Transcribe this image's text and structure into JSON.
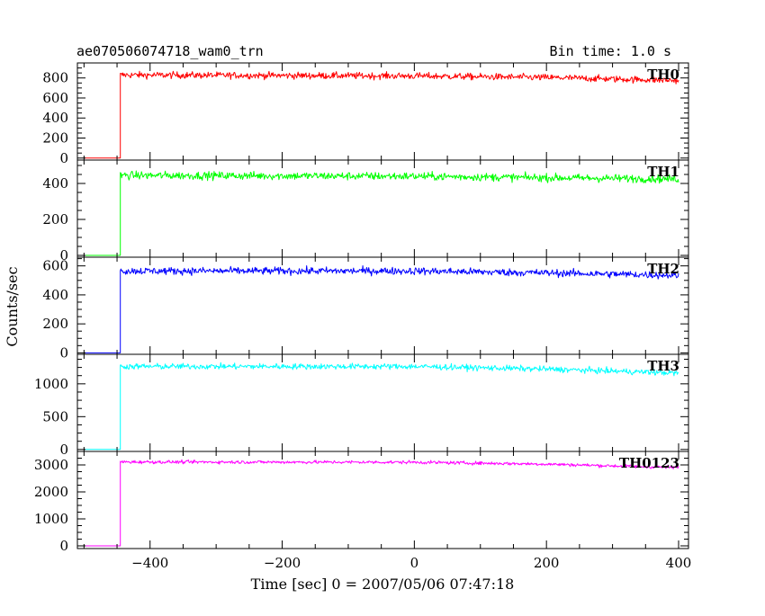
{
  "header": {
    "title": "ae070506074718_wam0_trn",
    "bin_time": "Bin time: 1.0 s"
  },
  "chart_data": {
    "type": "line",
    "xlabel": "Time [sec] 0 = 2007/05/06 07:47:18",
    "ylabel": "Counts/sec",
    "xlim": [
      -510,
      415
    ],
    "x_ticks": [
      -400,
      -200,
      0,
      200,
      400
    ],
    "x_tick_labels": [
      "−400",
      "−200",
      "0",
      "200",
      "400"
    ],
    "grid": false,
    "panels": [
      {
        "series_name": "TH0",
        "color": "#ff0000",
        "ylim": [
          -20,
          950
        ],
        "y_ticks": [
          0,
          200,
          400,
          600,
          800
        ],
        "y_tick_labels": [
          "0",
          "200",
          "400",
          "600",
          "800"
        ],
        "pre_level": 0,
        "onset_time": -445,
        "trend": [
          [
            -445,
            830
          ],
          [
            0,
            820
          ],
          [
            200,
            805
          ],
          [
            400,
            775
          ]
        ],
        "noise_amplitude": 30
      },
      {
        "series_name": "TH1",
        "color": "#00ff00",
        "ylim": [
          -10,
          530
        ],
        "y_ticks": [
          0,
          200,
          400
        ],
        "y_tick_labels": [
          "0",
          "200",
          "400"
        ],
        "pre_level": 0,
        "onset_time": -445,
        "trend": [
          [
            -445,
            445
          ],
          [
            0,
            440
          ],
          [
            200,
            432
          ],
          [
            400,
            425
          ]
        ],
        "noise_amplitude": 20
      },
      {
        "series_name": "TH2",
        "color": "#0000ff",
        "ylim": [
          -10,
          660
        ],
        "y_ticks": [
          0,
          200,
          400,
          600
        ],
        "y_tick_labels": [
          "0",
          "200",
          "400",
          "600"
        ],
        "pre_level": 0,
        "onset_time": -445,
        "trend": [
          [
            -445,
            565
          ],
          [
            0,
            565
          ],
          [
            200,
            552
          ],
          [
            400,
            535
          ]
        ],
        "noise_amplitude": 23
      },
      {
        "series_name": "TH3",
        "color": "#00ffff",
        "ylim": [
          -30,
          1450
        ],
        "y_ticks": [
          0,
          500,
          1000
        ],
        "y_tick_labels": [
          "0",
          "500",
          "1000"
        ],
        "pre_level": 0,
        "onset_time": -445,
        "trend": [
          [
            -445,
            1265
          ],
          [
            0,
            1265
          ],
          [
            200,
            1225
          ],
          [
            400,
            1165
          ]
        ],
        "noise_amplitude": 40
      },
      {
        "series_name": "TH0123",
        "color": "#ff00ff",
        "ylim": [
          -100,
          3500
        ],
        "y_ticks": [
          0,
          1000,
          2000,
          3000
        ],
        "y_tick_labels": [
          "0",
          "1000",
          "2000",
          "3000"
        ],
        "pre_level": 0,
        "onset_time": -445,
        "trend": [
          [
            -445,
            3110
          ],
          [
            0,
            3100
          ],
          [
            200,
            3030
          ],
          [
            400,
            2900
          ]
        ],
        "noise_amplitude": 55
      }
    ]
  }
}
